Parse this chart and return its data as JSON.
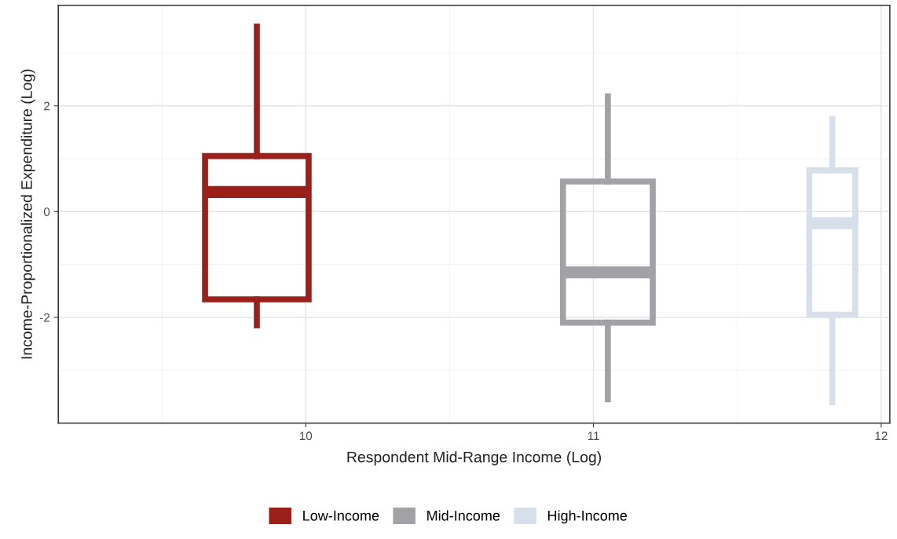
{
  "chart_data": {
    "type": "box",
    "xlabel": "Respondent Mid-Range Income (Log)",
    "ylabel": "Income-Proportionalized Expenditure (Log)",
    "series": [
      {
        "name": "Low-Income",
        "color": "#9b1f1a",
        "x": [
          9.83
        ],
        "boxes": [
          {
            "low": -2.15,
            "q1": -1.66,
            "median": 0.37,
            "q3": 1.05,
            "high": 3.5
          }
        ]
      },
      {
        "name": "Mid-Income",
        "color": "#a2a1a6",
        "x": [
          11.05
        ],
        "boxes": [
          {
            "low": -3.55,
            "q1": -2.1,
            "median": -1.15,
            "q3": 0.57,
            "high": 2.18
          }
        ]
      },
      {
        "name": "High-Income",
        "color": "#d6dfea",
        "x": [
          11.83
        ],
        "boxes": [
          {
            "low": -3.6,
            "q1": -1.95,
            "median": -0.22,
            "q3": 0.78,
            "high": 1.75
          }
        ]
      }
    ],
    "xlim": [
      9.14,
      12.03
    ],
    "xticks": [
      10,
      11,
      12
    ],
    "ylim": [
      -4.0,
      3.9
    ],
    "yticks": [
      -2,
      0,
      2
    ],
    "grid": true,
    "legend": "bottom"
  }
}
